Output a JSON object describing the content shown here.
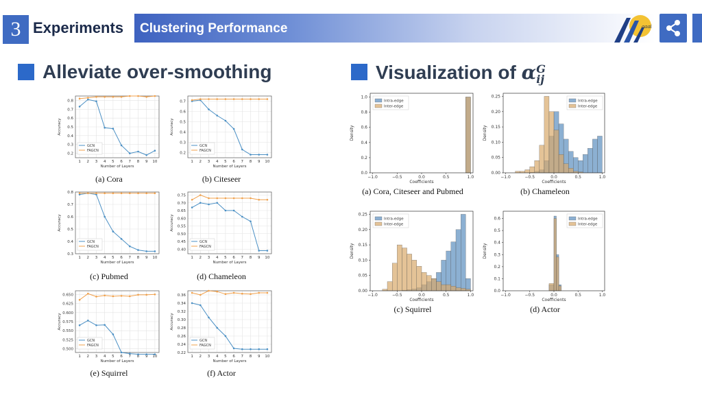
{
  "header": {
    "section_number": "3",
    "section_title": "Experiments",
    "subsection_title": "Clustering Performance",
    "logo_text": "aaai"
  },
  "left": {
    "heading": "Alleviate over-smoothing"
  },
  "right": {
    "heading_prefix": "Visualization of",
    "symbol": "α",
    "superscript": "G",
    "subscript": "ij"
  },
  "colors": {
    "accent": "#3f6bc2",
    "gcn": "#4a8fc4",
    "fagcn": "#f0a04b",
    "intra": "#5b8fbf",
    "inter": "#d9a96b"
  },
  "chart_data": [
    {
      "type": "line",
      "caption": "(a) Cora",
      "xlabel": "Number of Layers",
      "ylabel": "Accuracy",
      "x": [
        1,
        2,
        3,
        4,
        5,
        6,
        7,
        8,
        9,
        10
      ],
      "ylim": [
        0.15,
        0.85
      ],
      "yticks": [
        0.2,
        0.3,
        0.4,
        0.5,
        0.6,
        0.7,
        0.8
      ],
      "ytick_labels": [
        "0.2",
        "0.3",
        "0.4",
        "0.5",
        "0.6",
        "0.7",
        "0.8"
      ],
      "series": [
        {
          "name": "GCN",
          "values": [
            0.73,
            0.81,
            0.79,
            0.49,
            0.48,
            0.29,
            0.2,
            0.22,
            0.18,
            0.23
          ]
        },
        {
          "name": "FAGCN",
          "values": [
            0.82,
            0.83,
            0.84,
            0.84,
            0.84,
            0.84,
            0.85,
            0.85,
            0.84,
            0.85
          ]
        }
      ],
      "legend": "bottom-left"
    },
    {
      "type": "line",
      "caption": "(b) Citeseer",
      "xlabel": "Number of Layers",
      "ylabel": "Accuracy",
      "x": [
        1,
        2,
        3,
        4,
        5,
        6,
        7,
        8,
        9,
        10
      ],
      "ylim": [
        0.15,
        0.75
      ],
      "yticks": [
        0.2,
        0.3,
        0.4,
        0.5,
        0.6,
        0.7
      ],
      "ytick_labels": [
        "0.2",
        "0.3",
        "0.4",
        "0.5",
        "0.6",
        "0.7"
      ],
      "series": [
        {
          "name": "GCN",
          "values": [
            0.7,
            0.71,
            0.62,
            0.56,
            0.51,
            0.43,
            0.23,
            0.18,
            0.18,
            0.18
          ]
        },
        {
          "name": "FAGCN",
          "values": [
            0.71,
            0.72,
            0.72,
            0.72,
            0.72,
            0.72,
            0.72,
            0.72,
            0.72,
            0.72
          ]
        }
      ],
      "legend": "bottom-left"
    },
    {
      "type": "line",
      "caption": "(c) Pubmed",
      "xlabel": "Number of Layers",
      "ylabel": "Accuracy",
      "x": [
        1,
        2,
        3,
        4,
        5,
        6,
        7,
        8,
        9,
        10
      ],
      "ylim": [
        0.3,
        0.8
      ],
      "yticks": [
        0.3,
        0.4,
        0.5,
        0.6,
        0.7,
        0.8
      ],
      "ytick_labels": [
        "0.3",
        "0.4",
        "0.5",
        "0.6",
        "0.7",
        "0.8"
      ],
      "series": [
        {
          "name": "GCN",
          "values": [
            0.78,
            0.79,
            0.78,
            0.6,
            0.48,
            0.42,
            0.36,
            0.33,
            0.32,
            0.32
          ]
        },
        {
          "name": "FAGCN",
          "values": [
            0.79,
            0.79,
            0.79,
            0.79,
            0.79,
            0.79,
            0.79,
            0.79,
            0.79,
            0.79
          ]
        }
      ],
      "legend": "bottom-left"
    },
    {
      "type": "line",
      "caption": "(d) Chameleon",
      "xlabel": "Number of Layers",
      "ylabel": "Accuracy",
      "x": [
        1,
        2,
        3,
        4,
        5,
        6,
        7,
        8,
        9,
        10
      ],
      "ylim": [
        0.37,
        0.77
      ],
      "yticks": [
        0.4,
        0.45,
        0.5,
        0.55,
        0.6,
        0.65,
        0.7,
        0.75
      ],
      "ytick_labels": [
        "0.40",
        "0.45",
        "0.50",
        "0.55",
        "0.60",
        "0.65",
        "0.70",
        "0.75"
      ],
      "series": [
        {
          "name": "GCN",
          "values": [
            0.67,
            0.7,
            0.69,
            0.7,
            0.65,
            0.65,
            0.61,
            0.58,
            0.39,
            0.39
          ]
        },
        {
          "name": "FAGCN",
          "values": [
            0.72,
            0.75,
            0.73,
            0.73,
            0.73,
            0.73,
            0.73,
            0.73,
            0.72,
            0.72
          ]
        }
      ],
      "legend": "bottom-left"
    },
    {
      "type": "line",
      "caption": "(e) Squirrel",
      "xlabel": "Number of Layers",
      "ylabel": "Accuracy",
      "x": [
        1,
        2,
        3,
        4,
        5,
        6,
        7,
        8,
        9,
        10
      ],
      "ylim": [
        0.49,
        0.66
      ],
      "yticks": [
        0.5,
        0.525,
        0.55,
        0.575,
        0.6,
        0.625,
        0.65
      ],
      "ytick_labels": [
        "0.500",
        "0.525",
        "0.550",
        "0.575",
        "0.600",
        "0.625",
        "0.650"
      ],
      "series": [
        {
          "name": "GCN",
          "values": [
            0.565,
            0.578,
            0.565,
            0.566,
            0.54,
            0.49,
            0.487,
            0.485,
            0.485,
            0.485
          ]
        },
        {
          "name": "FAGCN",
          "values": [
            0.635,
            0.652,
            0.644,
            0.647,
            0.645,
            0.646,
            0.645,
            0.649,
            0.649,
            0.65
          ]
        }
      ],
      "legend": "bottom-left"
    },
    {
      "type": "line",
      "caption": "(f) Actor",
      "xlabel": "Number of Layers",
      "ylabel": "Accuracy",
      "x": [
        1,
        2,
        3,
        4,
        5,
        6,
        7,
        8,
        9,
        10
      ],
      "ylim": [
        0.22,
        0.37
      ],
      "yticks": [
        0.22,
        0.24,
        0.26,
        0.28,
        0.3,
        0.32,
        0.34,
        0.36
      ],
      "ytick_labels": [
        "0.22",
        "0.24",
        "0.26",
        "0.28",
        "0.30",
        "0.32",
        "0.34",
        "0.36"
      ],
      "series": [
        {
          "name": "GCN",
          "values": [
            0.34,
            0.335,
            0.305,
            0.28,
            0.26,
            0.23,
            0.228,
            0.228,
            0.228,
            0.228
          ]
        },
        {
          "name": "FAGCN",
          "values": [
            0.365,
            0.36,
            0.37,
            0.368,
            0.362,
            0.365,
            0.363,
            0.362,
            0.365,
            0.365
          ]
        }
      ],
      "legend": "bottom-left"
    },
    {
      "type": "histogram",
      "caption": "(a) Cora, Citeseer and Pubmed",
      "xlabel": "Coefficients",
      "ylabel": "Density",
      "bins": [
        -1.0,
        -0.9,
        -0.8,
        -0.7,
        -0.6,
        -0.5,
        -0.4,
        -0.3,
        -0.2,
        -0.1,
        0.0,
        0.1,
        0.2,
        0.3,
        0.4,
        0.5,
        0.6,
        0.7,
        0.8,
        0.9,
        1.0
      ],
      "xlim": [
        -1.05,
        1.05
      ],
      "ylim": [
        0,
        1.05
      ],
      "xticks": [
        -1.0,
        -0.5,
        0.0,
        0.5,
        1.0
      ],
      "xtick_labels": [
        "−1.0",
        "−0.5",
        "0.0",
        "0.5",
        "1.0"
      ],
      "yticks": [
        0,
        0.2,
        0.4,
        0.6,
        0.8,
        1.0
      ],
      "ytick_labels": [
        "0.0",
        "0.2",
        "0.4",
        "0.6",
        "0.8",
        "1.0"
      ],
      "series": [
        {
          "name": "Intra-edge",
          "values": [
            0,
            0,
            0,
            0,
            0,
            0,
            0,
            0,
            0,
            0,
            0,
            0,
            0,
            0,
            0,
            0,
            0,
            0,
            0,
            1.0
          ]
        },
        {
          "name": "Inter-edge",
          "values": [
            0,
            0,
            0,
            0,
            0,
            0,
            0,
            0,
            0,
            0,
            0,
            0,
            0,
            0,
            0,
            0,
            0,
            0,
            0,
            1.0
          ]
        }
      ],
      "legend": "top-left"
    },
    {
      "type": "histogram",
      "caption": "(b) Chameleon",
      "xlabel": "Coefficients",
      "ylabel": "Density",
      "bins": [
        -1.0,
        -0.9,
        -0.8,
        -0.7,
        -0.6,
        -0.5,
        -0.4,
        -0.3,
        -0.2,
        -0.1,
        0.0,
        0.1,
        0.2,
        0.3,
        0.4,
        0.5,
        0.6,
        0.7,
        0.8,
        0.9,
        1.0
      ],
      "xlim": [
        -1.05,
        1.05
      ],
      "ylim": [
        0,
        0.26
      ],
      "xticks": [
        -1.0,
        -0.5,
        0.0,
        0.5,
        1.0
      ],
      "xtick_labels": [
        "−1.0",
        "−0.5",
        "0.0",
        "0.5",
        "1.0"
      ],
      "yticks": [
        0,
        0.05,
        0.1,
        0.15,
        0.2,
        0.25
      ],
      "ytick_labels": [
        "0.00",
        "0.05",
        "0.10",
        "0.15",
        "0.20",
        "0.25"
      ],
      "series": [
        {
          "name": "Intra-edge",
          "values": [
            0,
            0,
            0,
            0,
            0,
            0.002,
            0.005,
            0.01,
            0.04,
            0.12,
            0.2,
            0.16,
            0.11,
            0.07,
            0.05,
            0.04,
            0.06,
            0.08,
            0.11,
            0.12
          ]
        },
        {
          "name": "Inter-edge",
          "values": [
            0,
            0,
            0.005,
            0.005,
            0.01,
            0.02,
            0.04,
            0.09,
            0.25,
            0.2,
            0.14,
            0.06,
            0.03,
            0.015,
            0.005,
            0.003,
            0,
            0,
            0,
            0
          ]
        }
      ],
      "legend": "top-right"
    },
    {
      "type": "histogram",
      "caption": "(c) Squirrel",
      "xlabel": "Coefficients",
      "ylabel": "Density",
      "bins": [
        -1.0,
        -0.9,
        -0.8,
        -0.7,
        -0.6,
        -0.5,
        -0.4,
        -0.3,
        -0.2,
        -0.1,
        0.0,
        0.1,
        0.2,
        0.3,
        0.4,
        0.5,
        0.6,
        0.7,
        0.8,
        0.9,
        1.0
      ],
      "xlim": [
        -1.05,
        1.05
      ],
      "ylim": [
        0,
        0.26
      ],
      "xticks": [
        -1.0,
        -0.5,
        0.0,
        0.5,
        1.0
      ],
      "xtick_labels": [
        "−1.0",
        "−0.5",
        "0.0",
        "0.5",
        "1.0"
      ],
      "yticks": [
        0,
        0.05,
        0.1,
        0.15,
        0.2,
        0.25
      ],
      "ytick_labels": [
        "0.00",
        "0.05",
        "0.10",
        "0.15",
        "0.20",
        "0.25"
      ],
      "series": [
        {
          "name": "Intra-edge",
          "values": [
            0,
            0,
            0,
            0,
            0,
            0,
            0.002,
            0.004,
            0.006,
            0.01,
            0.02,
            0.03,
            0.04,
            0.06,
            0.1,
            0.13,
            0.16,
            0.2,
            0.25,
            0.04
          ]
        },
        {
          "name": "Inter-edge",
          "values": [
            0,
            0,
            0.005,
            0.03,
            0.09,
            0.15,
            0.14,
            0.12,
            0.1,
            0.08,
            0.06,
            0.05,
            0.04,
            0.03,
            0.02,
            0.02,
            0.015,
            0.01,
            0.008,
            0.005
          ]
        }
      ],
      "legend": "top-left"
    },
    {
      "type": "histogram",
      "caption": "(d) Actor",
      "xlabel": "Coefficients",
      "ylabel": "Density",
      "bins": [
        -1.0,
        -0.9,
        -0.8,
        -0.7,
        -0.6,
        -0.5,
        -0.4,
        -0.3,
        -0.2,
        -0.1,
        0.0,
        0.05,
        0.1,
        0.15,
        0.2,
        0.3,
        0.4,
        0.5,
        0.6,
        0.7,
        0.8,
        0.9,
        1.0
      ],
      "xlim": [
        -1.05,
        1.05
      ],
      "ylim": [
        0,
        0.66
      ],
      "xticks": [
        -1.0,
        -0.5,
        0.0,
        0.5,
        1.0
      ],
      "xtick_labels": [
        "−1.0",
        "−0.5",
        "0.0",
        "0.5",
        "1.0"
      ],
      "yticks": [
        0,
        0.1,
        0.2,
        0.3,
        0.4,
        0.5,
        0.6
      ],
      "ytick_labels": [
        "0.0",
        "0.1",
        "0.2",
        "0.3",
        "0.4",
        "0.5",
        "0.6"
      ],
      "series": [
        {
          "name": "Intra-edge",
          "values": [
            0,
            0,
            0,
            0,
            0,
            0,
            0,
            0,
            0,
            0.05,
            0.62,
            0.3,
            0.05,
            0,
            0,
            0,
            0,
            0,
            0,
            0,
            0,
            0
          ]
        },
        {
          "name": "Inter-edge",
          "values": [
            0,
            0,
            0,
            0,
            0,
            0,
            0,
            0,
            0,
            0.06,
            0.6,
            0.28,
            0.04,
            0,
            0,
            0,
            0,
            0,
            0,
            0,
            0,
            0
          ]
        }
      ],
      "legend": "top-right"
    }
  ]
}
